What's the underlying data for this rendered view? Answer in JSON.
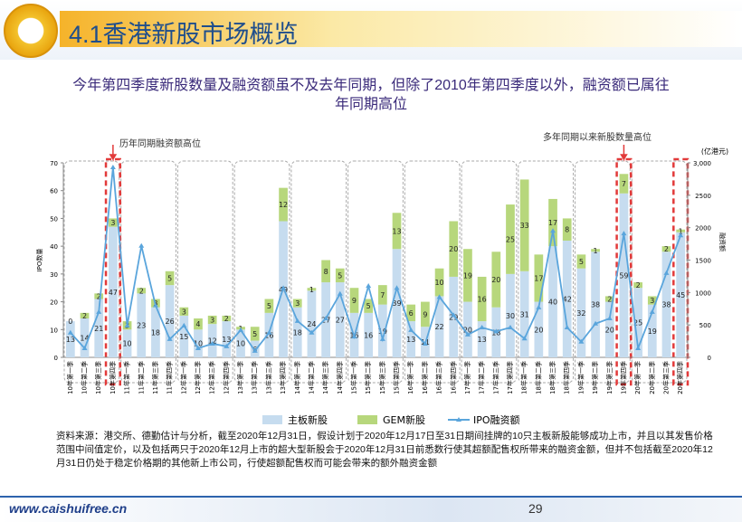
{
  "header": {
    "title": "4.1香港新股市场概览"
  },
  "chart_data": {
    "type": "bar_line",
    "title": "今年第四季度新股数量及融资额虽不及去年同期，但除了2010年第四季度以外，融资额已属往年同期高位",
    "categories": [
      "10年第一季",
      "10年第二季",
      "10年第三季",
      "10年第四季",
      "11年第一季",
      "11年第二季",
      "11年第三季",
      "11年第四季",
      "12年第一季",
      "12年第二季",
      "12年第三季",
      "12年第四季",
      "13年第一季",
      "13年第二季",
      "13年第三季",
      "13年第四季",
      "14年第一季",
      "14年第二季",
      "14年第三季",
      "14年第四季",
      "15年第一季",
      "15年第二季",
      "15年第三季",
      "15年第四季",
      "16年第一季",
      "16年第二季",
      "16年第三季",
      "16年第四季",
      "17年第一季",
      "17年第二季",
      "17年第三季",
      "17年第四季",
      "18年第一季",
      "18年第二季",
      "18年第三季",
      "18年第四季",
      "19年第一季",
      "19年第二季",
      "19年第三季",
      "19年第四季",
      "20年第一季",
      "20年第二季",
      "20年第三季",
      "20年第四季"
    ],
    "series": [
      {
        "name": "主板新股",
        "color": "#c6dcef",
        "values": [
          13,
          14,
          21,
          47,
          10,
          23,
          18,
          26,
          15,
          10,
          12,
          13,
          10,
          6,
          16,
          49,
          18,
          24,
          27,
          27,
          16,
          16,
          19,
          39,
          13,
          11,
          22,
          29,
          20,
          13,
          18,
          30,
          31,
          20,
          40,
          42,
          32,
          38,
          20,
          59,
          25,
          19,
          38,
          45
        ]
      },
      {
        "name": "GEM新股",
        "color": "#b7d77c",
        "values": [
          0,
          2,
          2,
          3,
          3,
          2,
          3,
          5,
          3,
          4,
          3,
          2,
          1,
          5,
          5,
          12,
          3,
          1,
          8,
          5,
          9,
          5,
          7,
          13,
          6,
          9,
          10,
          20,
          19,
          16,
          20,
          25,
          33,
          17,
          17,
          8,
          5,
          1,
          2,
          7,
          2,
          3,
          2,
          1
        ]
      },
      {
        "name": "IPO融资额",
        "color": "#5aa5dc",
        "axis": "y2",
        "values": [
          380,
          140,
          700,
          2930,
          490,
          1720,
          800,
          280,
          490,
          140,
          210,
          170,
          420,
          100,
          380,
          1070,
          560,
          380,
          600,
          980,
          320,
          1100,
          280,
          1070,
          420,
          210,
          930,
          650,
          350,
          460,
          400,
          460,
          290,
          770,
          1950,
          460,
          240,
          520,
          600,
          1910,
          140,
          700,
          1300,
          1880
        ]
      }
    ],
    "ylim": [
      0,
      70
    ],
    "yticks": [
      0,
      10,
      20,
      30,
      40,
      50,
      60,
      70
    ],
    "y2lim": [
      0,
      3000
    ],
    "y2ticks": [
      0,
      500,
      1000,
      1500,
      2000,
      2500,
      {
        "value": 3000,
        "label": "3,000"
      }
    ],
    "y_label": "IPO数量",
    "y2_label": "融资额",
    "y2_unit": "(亿港元)",
    "annotations": [
      "历年同期融资额高位",
      "多年同期以来新股数量高位"
    ]
  },
  "source_note": "资料来源：港交所、德勤估计与分析，截至2020年12月31日，假设计划于2020年12月17日至31日期间挂牌的10只主板新股能够成功上市，并且以其发售价格范围中间值定价，以及包括两只于2020年12月上市的超大型新股会于2020年12月31日前悉数行使其超额配售权所带来的融资金额，但并不包括截至2020年12月31日仍处于稳定价格期的其他新上市公司，行使超额配售权而可能会带来的额外融资金额",
  "footer": {
    "url": "www.caishuifree.cn",
    "page": "29"
  }
}
